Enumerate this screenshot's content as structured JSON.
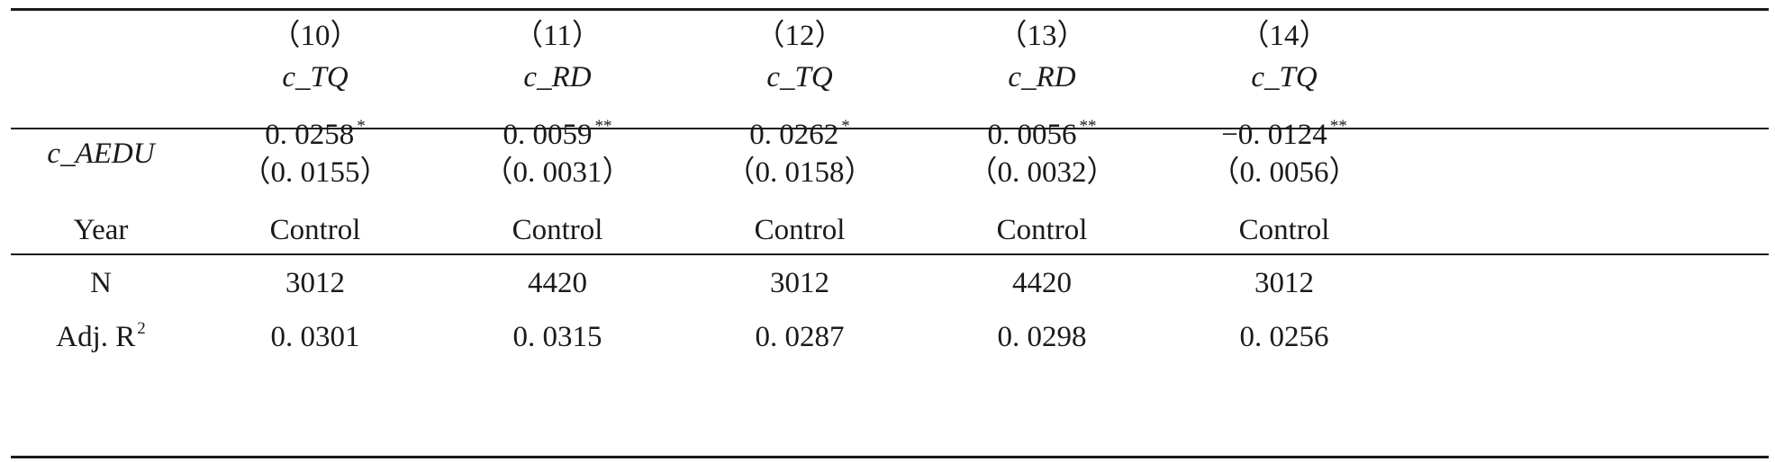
{
  "header": {
    "columns": [
      {
        "num": "（10）",
        "dep": "c_TQ"
      },
      {
        "num": "（11）",
        "dep": "c_RD"
      },
      {
        "num": "（12）",
        "dep": "c_TQ"
      },
      {
        "num": "（13）",
        "dep": "c_RD"
      },
      {
        "num": "（14）",
        "dep": "c_TQ"
      }
    ]
  },
  "coef_row": {
    "label": "c_AEDU",
    "cells": [
      {
        "value": "0. 0258",
        "stars": "*",
        "se": "（0. 0155）"
      },
      {
        "value": "0. 0059",
        "stars": "**",
        "se": "（0. 0031）"
      },
      {
        "value": "0. 0262",
        "stars": "*",
        "se": "（0. 0158）"
      },
      {
        "value": "0. 0056",
        "stars": "**",
        "se": "（0. 0032）"
      },
      {
        "value": "−0. 0124",
        "stars": "**",
        "se": "（0. 0056）"
      }
    ]
  },
  "stat_rows": [
    {
      "label": "Year",
      "values": [
        "Control",
        "Control",
        "Control",
        "Control",
        "Control"
      ]
    },
    {
      "label": "N",
      "values": [
        "3012",
        "4420",
        "3012",
        "4420",
        "3012"
      ]
    },
    {
      "label": "Adj. R",
      "label_sup": "2",
      "values": [
        "0. 0301",
        "0. 0315",
        "0. 0287",
        "0. 0298",
        "0. 0256"
      ]
    }
  ]
}
